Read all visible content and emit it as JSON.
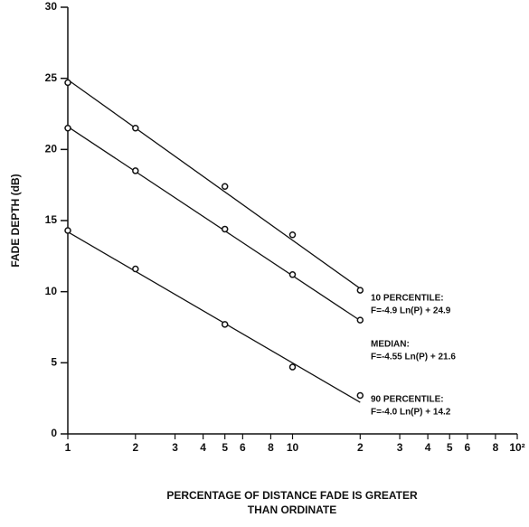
{
  "chart_data": {
    "type": "scatter",
    "y_label": "FADE DEPTH (dB)",
    "x_label": [
      "PERCENTAGE OF DISTANCE FADE IS GREATER",
      "THAN ORDINATE"
    ],
    "log_x": true,
    "xlim": [
      1,
      100
    ],
    "ylim": [
      0,
      30
    ],
    "xticks": [
      1,
      2,
      3,
      4,
      5,
      6,
      8,
      10,
      {
        "value": 20,
        "label": "2"
      },
      {
        "value": 30,
        "label": "3"
      },
      {
        "value": 40,
        "label": "4"
      },
      {
        "value": 50,
        "label": "5"
      },
      {
        "value": 60,
        "label": "6"
      },
      {
        "value": 80,
        "label": "8"
      },
      {
        "value": 100,
        "label": "10²"
      }
    ],
    "yticks": [
      0,
      5,
      10,
      15,
      20,
      25,
      30
    ],
    "color": "#111111",
    "series": [
      {
        "name": "10 PERCENTILE:",
        "equation": "F=-4.9 Ln(P) + 24.9",
        "slope": -4.9,
        "intercept": 24.9,
        "x": [
          1,
          2,
          5,
          10,
          20
        ],
        "values": [
          24.7,
          21.5,
          17.4,
          14.0,
          10.1
        ]
      },
      {
        "name": "MEDIAN:",
        "equation": "F=-4.55 Ln(P) + 21.6",
        "slope": -4.55,
        "intercept": 21.6,
        "x": [
          1,
          2,
          5,
          10,
          20
        ],
        "values": [
          21.5,
          18.5,
          14.4,
          11.2,
          8.0
        ]
      },
      {
        "name": "90 PERCENTILE:",
        "equation": "F=-4.0 Ln(P) + 14.2",
        "slope": -4.0,
        "intercept": 14.2,
        "x": [
          1,
          2,
          5,
          10,
          20
        ],
        "values": [
          14.3,
          11.6,
          7.7,
          4.7,
          2.7
        ]
      }
    ]
  }
}
